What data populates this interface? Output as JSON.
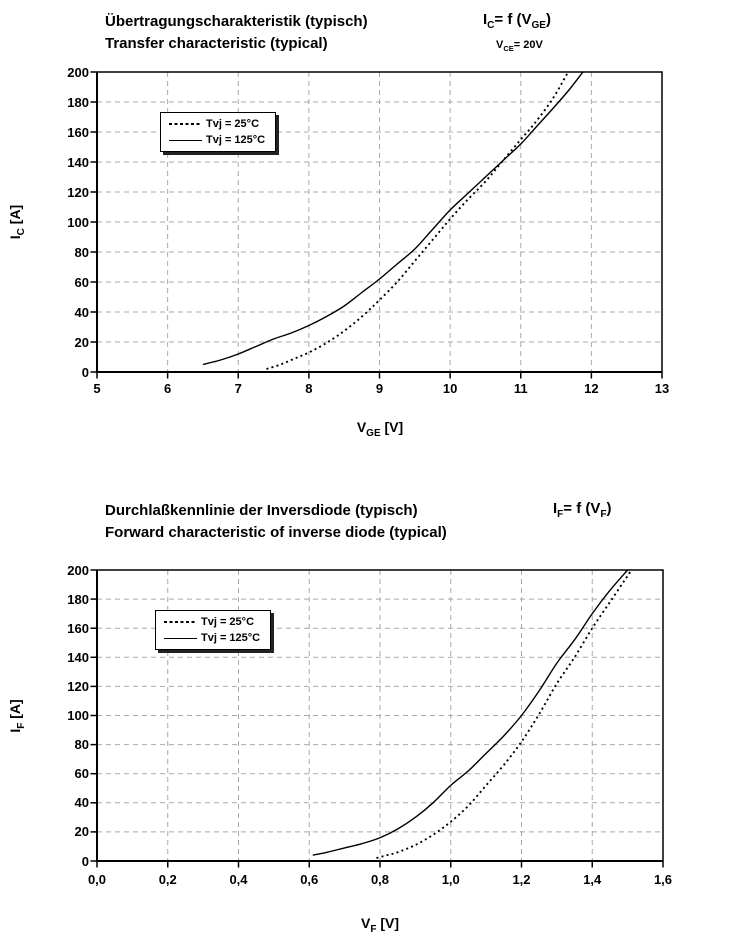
{
  "page": {
    "background": "#ffffff"
  },
  "colors": {
    "grid": "#a9a9a9",
    "curve": "#000000",
    "text": "#000000",
    "legend_shadow": "#222222"
  },
  "charts": [
    {
      "title_de": "Übertragungscharakteristik (typisch)",
      "title_en": "Transfer characteristic (typical)",
      "formula_parts": [
        {
          "t": "I"
        },
        {
          "t": "C",
          "sub": true
        },
        {
          "t": "= f (V"
        },
        {
          "t": "GE",
          "sub": true
        },
        {
          "t": ")"
        }
      ],
      "condition_parts": [
        {
          "t": "V"
        },
        {
          "t": "CE",
          "sub": true
        },
        {
          "t": "= 20V"
        }
      ],
      "x_axis_title_parts": [
        {
          "t": "V"
        },
        {
          "t": "GE",
          "sub": true
        },
        {
          "t": " [V]"
        }
      ],
      "y_axis_title_parts": [
        {
          "t": "I"
        },
        {
          "t": "C",
          "sub": true
        },
        {
          "t": " [A]"
        }
      ],
      "legend": [
        {
          "label": "Tvj = 25°C",
          "style": "dotted"
        },
        {
          "label": "Tvj = 125°C",
          "style": "solid"
        }
      ]
    },
    {
      "title_de": "Durchlaßkennlinie der Inversdiode (typisch)",
      "title_en": "Forward characteristic of inverse diode (typical)",
      "formula_parts": [
        {
          "t": "I"
        },
        {
          "t": "F",
          "sub": true
        },
        {
          "t": "= f (V"
        },
        {
          "t": "F",
          "sub": true
        },
        {
          "t": ")"
        }
      ],
      "condition_parts": [],
      "x_axis_title_parts": [
        {
          "t": "V"
        },
        {
          "t": "F",
          "sub": true
        },
        {
          "t": " [V]"
        }
      ],
      "y_axis_title_parts": [
        {
          "t": "I"
        },
        {
          "t": "F",
          "sub": true
        },
        {
          "t": " [A]"
        }
      ],
      "legend": [
        {
          "label": "Tvj = 25°C",
          "style": "dotted"
        },
        {
          "label": "Tvj = 125°C",
          "style": "solid"
        }
      ]
    }
  ],
  "chart_data": [
    {
      "type": "line",
      "title": "Übertragungscharakteristik (typisch) / Transfer characteristic (typical)",
      "subtitle": "IC= f (VGE), VCE= 20V",
      "xlabel": "VGE [V]",
      "ylabel": "IC [A]",
      "xlim": [
        5,
        13
      ],
      "ylim": [
        0,
        200
      ],
      "grid": true,
      "legend_position": "upper-left",
      "x_ticks": {
        "values": [
          5,
          6,
          7,
          8,
          9,
          10,
          11,
          12,
          13
        ],
        "labels": [
          "5",
          "6",
          "7",
          "8",
          "9",
          "10",
          "11",
          "12",
          "13"
        ]
      },
      "y_ticks": {
        "values": [
          0,
          20,
          40,
          60,
          80,
          100,
          120,
          140,
          160,
          180,
          200
        ],
        "labels": [
          "0",
          "20",
          "40",
          "60",
          "80",
          "100",
          "120",
          "140",
          "160",
          "180",
          "200"
        ]
      },
      "series": [
        {
          "name": "Tvj = 25°C",
          "line": "dotted",
          "points": [
            [
              7.4,
              2
            ],
            [
              7.6,
              5
            ],
            [
              7.8,
              9
            ],
            [
              8,
              13
            ],
            [
              8.2,
              18
            ],
            [
              8.4,
              24
            ],
            [
              8.6,
              31
            ],
            [
              8.8,
              39
            ],
            [
              9,
              48
            ],
            [
              9.25,
              60
            ],
            [
              9.5,
              74
            ],
            [
              9.75,
              88
            ],
            [
              10,
              102
            ],
            [
              10.25,
              115
            ],
            [
              10.5,
              127
            ],
            [
              10.75,
              141
            ],
            [
              11,
              155
            ],
            [
              11.2,
              166
            ],
            [
              11.45,
              182
            ],
            [
              11.67,
              200
            ]
          ]
        },
        {
          "name": "Tvj = 125°C",
          "line": "solid",
          "points": [
            [
              6.5,
              5
            ],
            [
              6.75,
              8
            ],
            [
              7,
              12
            ],
            [
              7.25,
              17
            ],
            [
              7.5,
              22
            ],
            [
              7.75,
              26
            ],
            [
              8,
              31
            ],
            [
              8.25,
              37
            ],
            [
              8.5,
              44
            ],
            [
              8.75,
              53
            ],
            [
              9,
              62
            ],
            [
              9.25,
              72
            ],
            [
              9.5,
              82
            ],
            [
              9.75,
              95
            ],
            [
              10,
              108
            ],
            [
              10.25,
              119
            ],
            [
              10.5,
              130
            ],
            [
              10.75,
              141
            ],
            [
              11,
              152
            ],
            [
              11.25,
              165
            ],
            [
              11.5,
              178
            ],
            [
              11.7,
              189
            ],
            [
              11.88,
              200
            ]
          ]
        }
      ]
    },
    {
      "type": "line",
      "title": "Durchlaßkennlinie der Inversdiode (typisch) / Forward characteristic of inverse diode (typical)",
      "subtitle": "IF= f (VF)",
      "xlabel": "VF [V]",
      "ylabel": "IF [A]",
      "xlim": [
        0,
        1.6
      ],
      "ylim": [
        0,
        200
      ],
      "grid": true,
      "legend_position": "upper-left",
      "x_ticks": {
        "values": [
          0,
          0.2,
          0.4,
          0.6,
          0.8,
          1.0,
          1.2,
          1.4,
          1.6
        ],
        "labels": [
          "0,0",
          "0,2",
          "0,4",
          "0,6",
          "0,8",
          "1,0",
          "1,2",
          "1,4",
          "1,6"
        ]
      },
      "y_ticks": {
        "values": [
          0,
          20,
          40,
          60,
          80,
          100,
          120,
          140,
          160,
          180,
          200
        ],
        "labels": [
          "0",
          "20",
          "40",
          "60",
          "80",
          "100",
          "120",
          "140",
          "160",
          "180",
          "200"
        ]
      },
      "series": [
        {
          "name": "Tvj = 25°C",
          "line": "dotted",
          "points": [
            [
              0.79,
              2
            ],
            [
              0.82,
              4
            ],
            [
              0.85,
              6
            ],
            [
              0.9,
              11
            ],
            [
              0.95,
              18
            ],
            [
              1.0,
              27
            ],
            [
              1.05,
              38
            ],
            [
              1.1,
              52
            ],
            [
              1.15,
              66
            ],
            [
              1.2,
              82
            ],
            [
              1.25,
              101
            ],
            [
              1.3,
              122
            ],
            [
              1.35,
              140
            ],
            [
              1.4,
              160
            ],
            [
              1.45,
              178
            ],
            [
              1.5,
              196
            ],
            [
              1.51,
              200
            ]
          ]
        },
        {
          "name": "Tvj = 125°C",
          "line": "solid",
          "points": [
            [
              0.61,
              4
            ],
            [
              0.65,
              6
            ],
            [
              0.7,
              9
            ],
            [
              0.75,
              12
            ],
            [
              0.8,
              16
            ],
            [
              0.85,
              22
            ],
            [
              0.9,
              30
            ],
            [
              0.95,
              40
            ],
            [
              1.0,
              52
            ],
            [
              1.05,
              62
            ],
            [
              1.1,
              74
            ],
            [
              1.15,
              86
            ],
            [
              1.2,
              100
            ],
            [
              1.25,
              117
            ],
            [
              1.3,
              136
            ],
            [
              1.35,
              152
            ],
            [
              1.4,
              170
            ],
            [
              1.45,
              186
            ],
            [
              1.5,
              200
            ]
          ]
        }
      ]
    }
  ]
}
